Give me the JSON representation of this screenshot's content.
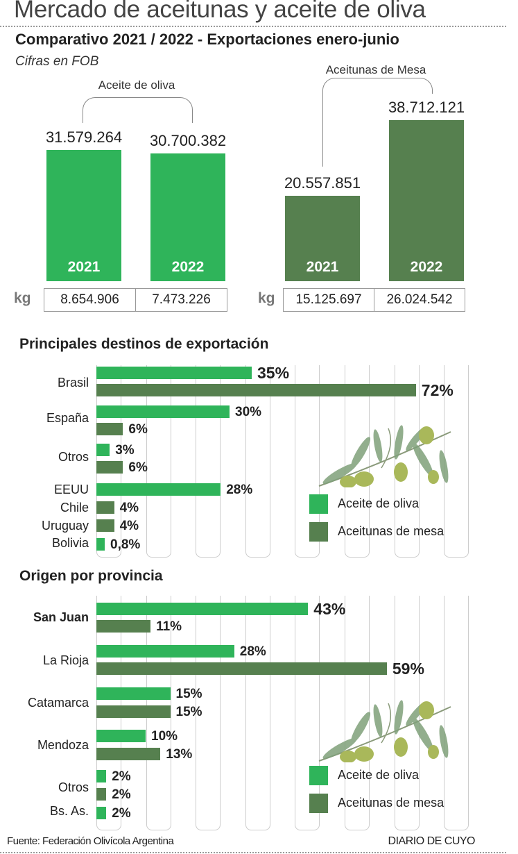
{
  "header": {
    "title": "Mercado de aceitunas y aceite de oliva",
    "subtitle": "Comparativo 2021 / 2022 - Exportaciones enero-junio",
    "note": "Cifras en FOB"
  },
  "colors": {
    "aceite": "#2fb45a",
    "mesa": "#56804f"
  },
  "chart_data": [
    {
      "type": "bar",
      "title": "Comparativo 2021 / 2022 - Exportaciones enero-junio",
      "unit": "FOB",
      "groups": [
        {
          "name": "Aceite de oliva",
          "color_key": "aceite",
          "bars": [
            {
              "year": "2021",
              "value": 31579264,
              "label": "31.579.264",
              "kg": "8.654.906"
            },
            {
              "year": "2022",
              "value": 30700382,
              "label": "30.700.382",
              "kg": "7.473.226"
            }
          ]
        },
        {
          "name": "Aceitunas de Mesa",
          "color_key": "mesa",
          "bars": [
            {
              "year": "2021",
              "value": 20557851,
              "label": "20.557.851",
              "kg": "15.125.697"
            },
            {
              "year": "2022",
              "value": 38712121,
              "label": "38.712.121",
              "kg": "26.024.542"
            }
          ]
        }
      ],
      "kg_label": "kg"
    },
    {
      "type": "bar",
      "orientation": "horizontal",
      "title": "Principales destinos de exportación",
      "legend": [
        "Aceite de oliva",
        "Aceitunas de mesa"
      ],
      "legend_position": "bottom-right",
      "rows": [
        {
          "category": "Brasil",
          "aceite": 35,
          "aceite_label": "35%",
          "mesa": 72,
          "mesa_label": "72%"
        },
        {
          "category": "España",
          "aceite": 30,
          "aceite_label": "30%",
          "mesa": 6,
          "mesa_label": "6%"
        },
        {
          "category": "Otros",
          "aceite": 3,
          "aceite_label": "3%",
          "mesa": 6,
          "mesa_label": "6%"
        },
        {
          "category": "EEUU",
          "aceite": 28,
          "aceite_label": "28%"
        },
        {
          "category": "Chile",
          "mesa": 4,
          "mesa_label": "4%"
        },
        {
          "category": "Uruguay",
          "mesa": 4,
          "mesa_label": "4%"
        },
        {
          "category": "Bolivia",
          "aceite": 0.8,
          "aceite_label": "0,8%"
        }
      ]
    },
    {
      "type": "bar",
      "orientation": "horizontal",
      "title": "Origen por provincia",
      "legend": [
        "Aceite de oliva",
        "Aceitunas de mesa"
      ],
      "legend_position": "bottom-right",
      "rows": [
        {
          "category": "San Juan",
          "aceite": 43,
          "aceite_label": "43%",
          "mesa": 11,
          "mesa_label": "11%"
        },
        {
          "category": "La Rioja",
          "aceite": 28,
          "aceite_label": "28%",
          "mesa": 59,
          "mesa_label": "59%"
        },
        {
          "category": "Catamarca",
          "aceite": 15,
          "aceite_label": "15%",
          "mesa": 15,
          "mesa_label": "15%"
        },
        {
          "category": "Mendoza",
          "aceite": 10,
          "aceite_label": "10%",
          "mesa": 13,
          "mesa_label": "13%"
        },
        {
          "category": "Otros",
          "aceite": 2,
          "aceite_label": "2%",
          "mesa": 2,
          "mesa_label": "2%"
        },
        {
          "category": "Bs. As.",
          "aceite": 2,
          "aceite_label": "2%"
        }
      ]
    }
  ],
  "footer": {
    "source": "Fuente: Federación Olivícola Argentina",
    "brand": "DIARIO DE CUYO"
  }
}
